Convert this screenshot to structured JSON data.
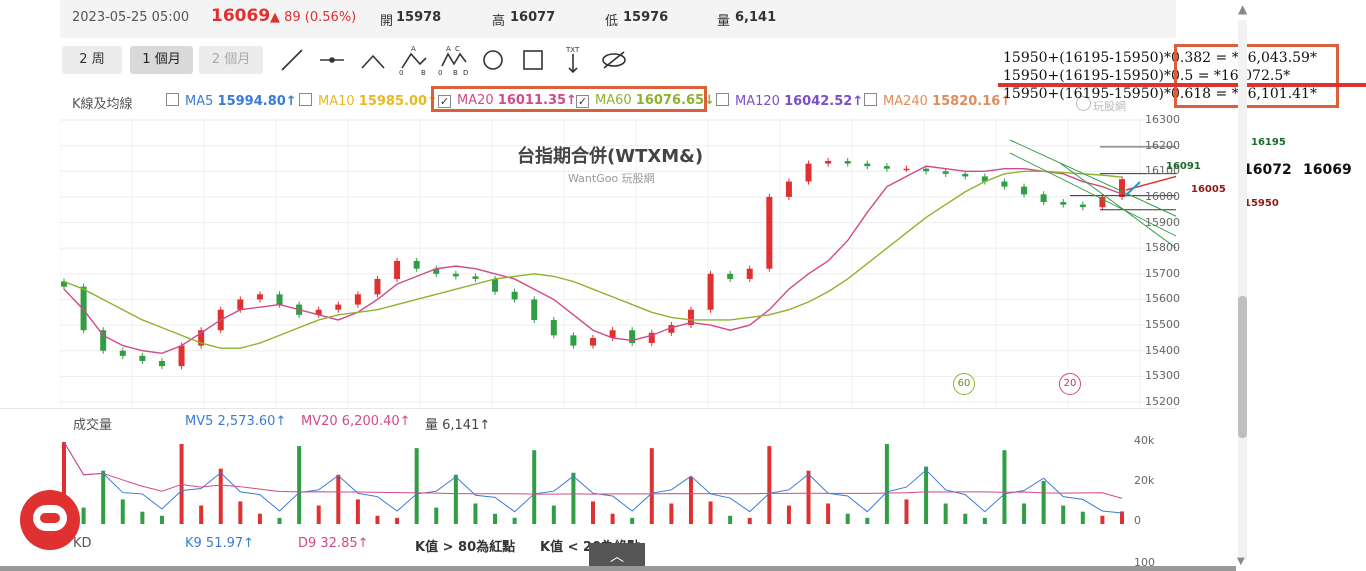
{
  "header": {
    "datetime": "2023-05-25 05:00",
    "price": "16069",
    "change": "▲ 89 (0.56%)",
    "open_label": "開",
    "open": "15978",
    "high_label": "高",
    "high": "16077",
    "low_label": "低",
    "low": "15976",
    "vol_label": "量",
    "vol": "6,141"
  },
  "periods": [
    "2 周",
    "1 個月",
    "2 個月"
  ],
  "active_period": "1 個月",
  "tools": [
    "line-tool-icon",
    "hline-tool-icon",
    "angle-tool-icon",
    "abcd-pattern-icon",
    "wave-pattern-icon",
    "circle-tool-icon",
    "rect-tool-icon",
    "text-tool-icon",
    "hide-drawings-icon"
  ],
  "ma_legend": {
    "label": "K線及均線",
    "items": [
      {
        "name": "MA5",
        "value": "15994.80↑",
        "color": "#3a7bd5",
        "checked": false
      },
      {
        "name": "MA10",
        "value": "15985.00↑",
        "color": "#e8b923",
        "checked": false
      },
      {
        "name": "MA20",
        "value": "16011.35↑",
        "color": "#d04a8a",
        "checked": true
      },
      {
        "name": "MA60",
        "value": "16076.65↓",
        "color": "#8db32e",
        "checked": true
      },
      {
        "name": "MA120",
        "value": "16042.52↑",
        "color": "#7b4fc9",
        "checked": false
      },
      {
        "name": "MA240",
        "value": "15820.16↑",
        "color": "#e08c5a",
        "checked": false
      }
    ]
  },
  "chart_title": "台指期合併(WTXM&)",
  "chart_subtitle": "WantGoo 玩股網",
  "watermark": "玩股網",
  "fib_notes": [
    "15950+(16195-15950)*0.382 = *16,043.59*",
    "15950+(16195-15950)*0.5 = *16,072.5*",
    "15950+(16195-15950)*0.618 = *16,101.41*"
  ],
  "annotations": {
    "high": "16195",
    "mid1": "16091",
    "mid2": "16005",
    "low": "15950",
    "big1": "16072",
    "big2": "16069"
  },
  "ma_markers": [
    "60",
    "20"
  ],
  "volume_legend": {
    "label": "成交量",
    "mv5": "MV5 2,573.60↑",
    "mv20": "MV20 6,200.40↑",
    "vol": "量 6,141↑"
  },
  "kd_legend": {
    "label": "KD",
    "k9": "K9 51.97↑",
    "d9": "D9 32.85↑",
    "note1": "K值 > 80為紅點",
    "note2": "K值 < 20為綠點"
  },
  "colors": {
    "up": "#e03131",
    "down": "#2f9e44",
    "ma20": "#d04a8a",
    "ma60": "#8db32e",
    "accent": "#d9603b"
  },
  "chart_data": [
    {
      "type": "line",
      "title": "台指期合併(WTXM&)",
      "ylim": [
        15200,
        16300
      ],
      "yticks": [
        "16300",
        "16200",
        "16100",
        "16000",
        "15900",
        "15800",
        "15700",
        "15600",
        "15500",
        "15400",
        "15300",
        "15200"
      ],
      "series": [
        {
          "name": "MA20",
          "values": [
            15640,
            15560,
            15460,
            15420,
            15400,
            15390,
            15420,
            15470,
            15520,
            15560,
            15570,
            15580,
            15560,
            15540,
            15520,
            15550,
            15600,
            15660,
            15690,
            15720,
            15730,
            15720,
            15700,
            15680,
            15640,
            15600,
            15540,
            15480,
            15450,
            15440,
            15460,
            15490,
            15510,
            15500,
            15480,
            15500,
            15560,
            15640,
            15700,
            15750,
            15830,
            15940,
            16040,
            16080,
            16120,
            16110,
            16100,
            16100,
            16110,
            16110,
            16100,
            16090,
            16060,
            16040,
            16011
          ]
        },
        {
          "name": "MA60",
          "values": [
            15670,
            15640,
            15600,
            15560,
            15520,
            15490,
            15460,
            15430,
            15410,
            15410,
            15430,
            15460,
            15490,
            15520,
            15540,
            15550,
            15560,
            15580,
            15600,
            15620,
            15640,
            15660,
            15680,
            15690,
            15700,
            15690,
            15670,
            15640,
            15610,
            15580,
            15550,
            15530,
            15520,
            15520,
            15520,
            15530,
            15540,
            15560,
            15590,
            15630,
            15680,
            15740,
            15800,
            15860,
            15920,
            15970,
            16020,
            16060,
            16090,
            16100,
            16100,
            16095,
            16090,
            16085,
            16077
          ]
        },
        {
          "name": "Close",
          "values": [
            15650,
            15480,
            15400,
            15380,
            15360,
            15340,
            15420,
            15480,
            15560,
            15600,
            15620,
            15580,
            15540,
            15560,
            15580,
            15620,
            15680,
            15750,
            15720,
            15700,
            15690,
            15680,
            15630,
            15600,
            15520,
            15460,
            15420,
            15450,
            15480,
            15430,
            15470,
            15500,
            15560,
            15700,
            15680,
            15720,
            16000,
            16060,
            16130,
            16140,
            16130,
            16120,
            16110,
            16110,
            16100,
            16090,
            16080,
            16060,
            16040,
            16010,
            15980,
            15970,
            15960,
            16000,
            16069
          ]
        }
      ]
    },
    {
      "type": "bar",
      "title": "成交量",
      "ylim": [
        0,
        40000
      ],
      "yticks": [
        "40k",
        "20k",
        "0"
      ],
      "values": [
        40000,
        8000,
        26000,
        12000,
        6000,
        4000,
        39000,
        9000,
        27000,
        11000,
        5000,
        3000,
        38000,
        9000,
        24000,
        12000,
        4000,
        3000,
        37000,
        8000,
        24000,
        10000,
        5000,
        3000,
        36000,
        9000,
        25000,
        11000,
        5000,
        3000,
        37000,
        10000,
        23000,
        11000,
        4000,
        3000,
        38000,
        9000,
        26000,
        10000,
        5000,
        3000,
        39000,
        12000,
        28000,
        10000,
        5000,
        3000,
        36000,
        10000,
        21000,
        9000,
        6000,
        4000,
        6141
      ]
    }
  ]
}
